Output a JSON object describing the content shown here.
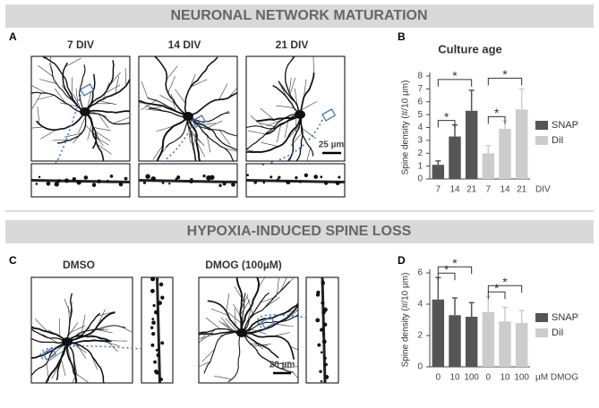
{
  "sections": [
    {
      "title": "NEURONAL NETWORK MATURATION",
      "image_panel": "A",
      "chart_panel": "B",
      "image_labels": [
        "7 DIV",
        "14 DIV",
        "21 DIV"
      ],
      "scale_bar": "25 µm"
    },
    {
      "title": "HYPOXIA-INDUCED SPINE LOSS",
      "image_panel": "C",
      "chart_panel": "D",
      "image_labels": [
        "DMSO",
        "DMOG (100µM)"
      ],
      "scale_bar": "20 µm"
    }
  ],
  "chart_data": [
    {
      "type": "bar",
      "title": "Culture age",
      "ylabel": "Spine density (#/10 µm)",
      "xlabel": "DIV",
      "categories": [
        "7",
        "14",
        "21"
      ],
      "series": [
        {
          "name": "SNAP",
          "color": "#555555",
          "values": [
            1.1,
            3.3,
            5.3
          ],
          "errors": [
            0.3,
            0.9,
            1.6
          ]
        },
        {
          "name": "DiI",
          "color": "#cccccc",
          "values": [
            2.0,
            3.9,
            5.4
          ],
          "errors": [
            0.6,
            0.6,
            1.6
          ]
        }
      ],
      "ylim": [
        0,
        8
      ],
      "yticks": [
        0,
        1,
        2,
        3,
        4,
        5,
        6,
        7,
        8
      ],
      "annotations": [
        "*",
        "*",
        "*",
        "*"
      ]
    },
    {
      "type": "bar",
      "ylabel": "Spine density (#/10 µm)",
      "xlabel": "µM DMOG",
      "categories": [
        "0",
        "10",
        "100"
      ],
      "series": [
        {
          "name": "SNAP",
          "color": "#555555",
          "values": [
            4.3,
            3.3,
            3.2
          ],
          "errors": [
            1.4,
            1.1,
            0.9
          ]
        },
        {
          "name": "DiI",
          "color": "#cccccc",
          "values": [
            3.5,
            2.9,
            2.8
          ],
          "errors": [
            1.0,
            0.9,
            0.8
          ]
        }
      ],
      "ylim": [
        0,
        6
      ],
      "yticks": [
        0,
        2,
        4,
        6
      ],
      "annotations": [
        "*",
        "*",
        "*",
        "*"
      ]
    }
  ]
}
